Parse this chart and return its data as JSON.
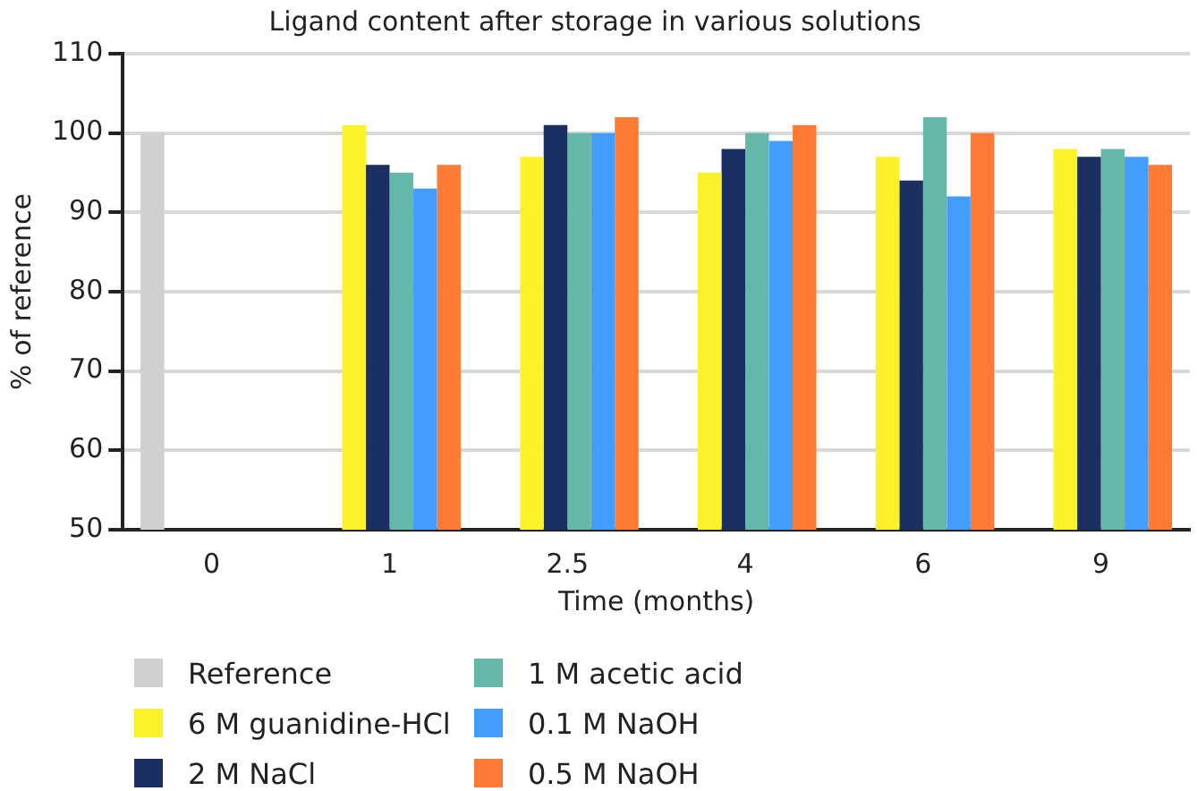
{
  "chart_data": {
    "type": "bar",
    "title": "Ligand content after storage in various solutions",
    "xlabel": "Time (months)",
    "ylabel": "% of reference",
    "categories": [
      "0",
      "1",
      "2.5",
      "4",
      "6",
      "9"
    ],
    "series": [
      {
        "name": "Reference",
        "color": "#d0d0d0",
        "values": [
          100,
          null,
          null,
          null,
          null,
          null
        ]
      },
      {
        "name": "6 M guanidine-HCl",
        "color": "#fdf22a",
        "values": [
          null,
          101,
          97,
          95,
          97,
          98
        ]
      },
      {
        "name": "2 M NaCl",
        "color": "#1b2f63",
        "values": [
          null,
          96,
          101,
          98,
          94,
          97
        ]
      },
      {
        "name": "1 M acetic acid",
        "color": "#64b8a9",
        "values": [
          null,
          95,
          100,
          100,
          102,
          98
        ]
      },
      {
        "name": "0.1 M NaOH",
        "color": "#439dff",
        "values": [
          null,
          93,
          100,
          99,
          92,
          97
        ]
      },
      {
        "name": "0.5 M NaOH",
        "color": "#ff7a35",
        "values": [
          null,
          96,
          102,
          101,
          100,
          96
        ]
      }
    ],
    "ylim": [
      50,
      110
    ],
    "yticks": [
      50,
      60,
      70,
      80,
      90,
      100,
      110
    ],
    "grid": "y",
    "legend": "bottom"
  }
}
